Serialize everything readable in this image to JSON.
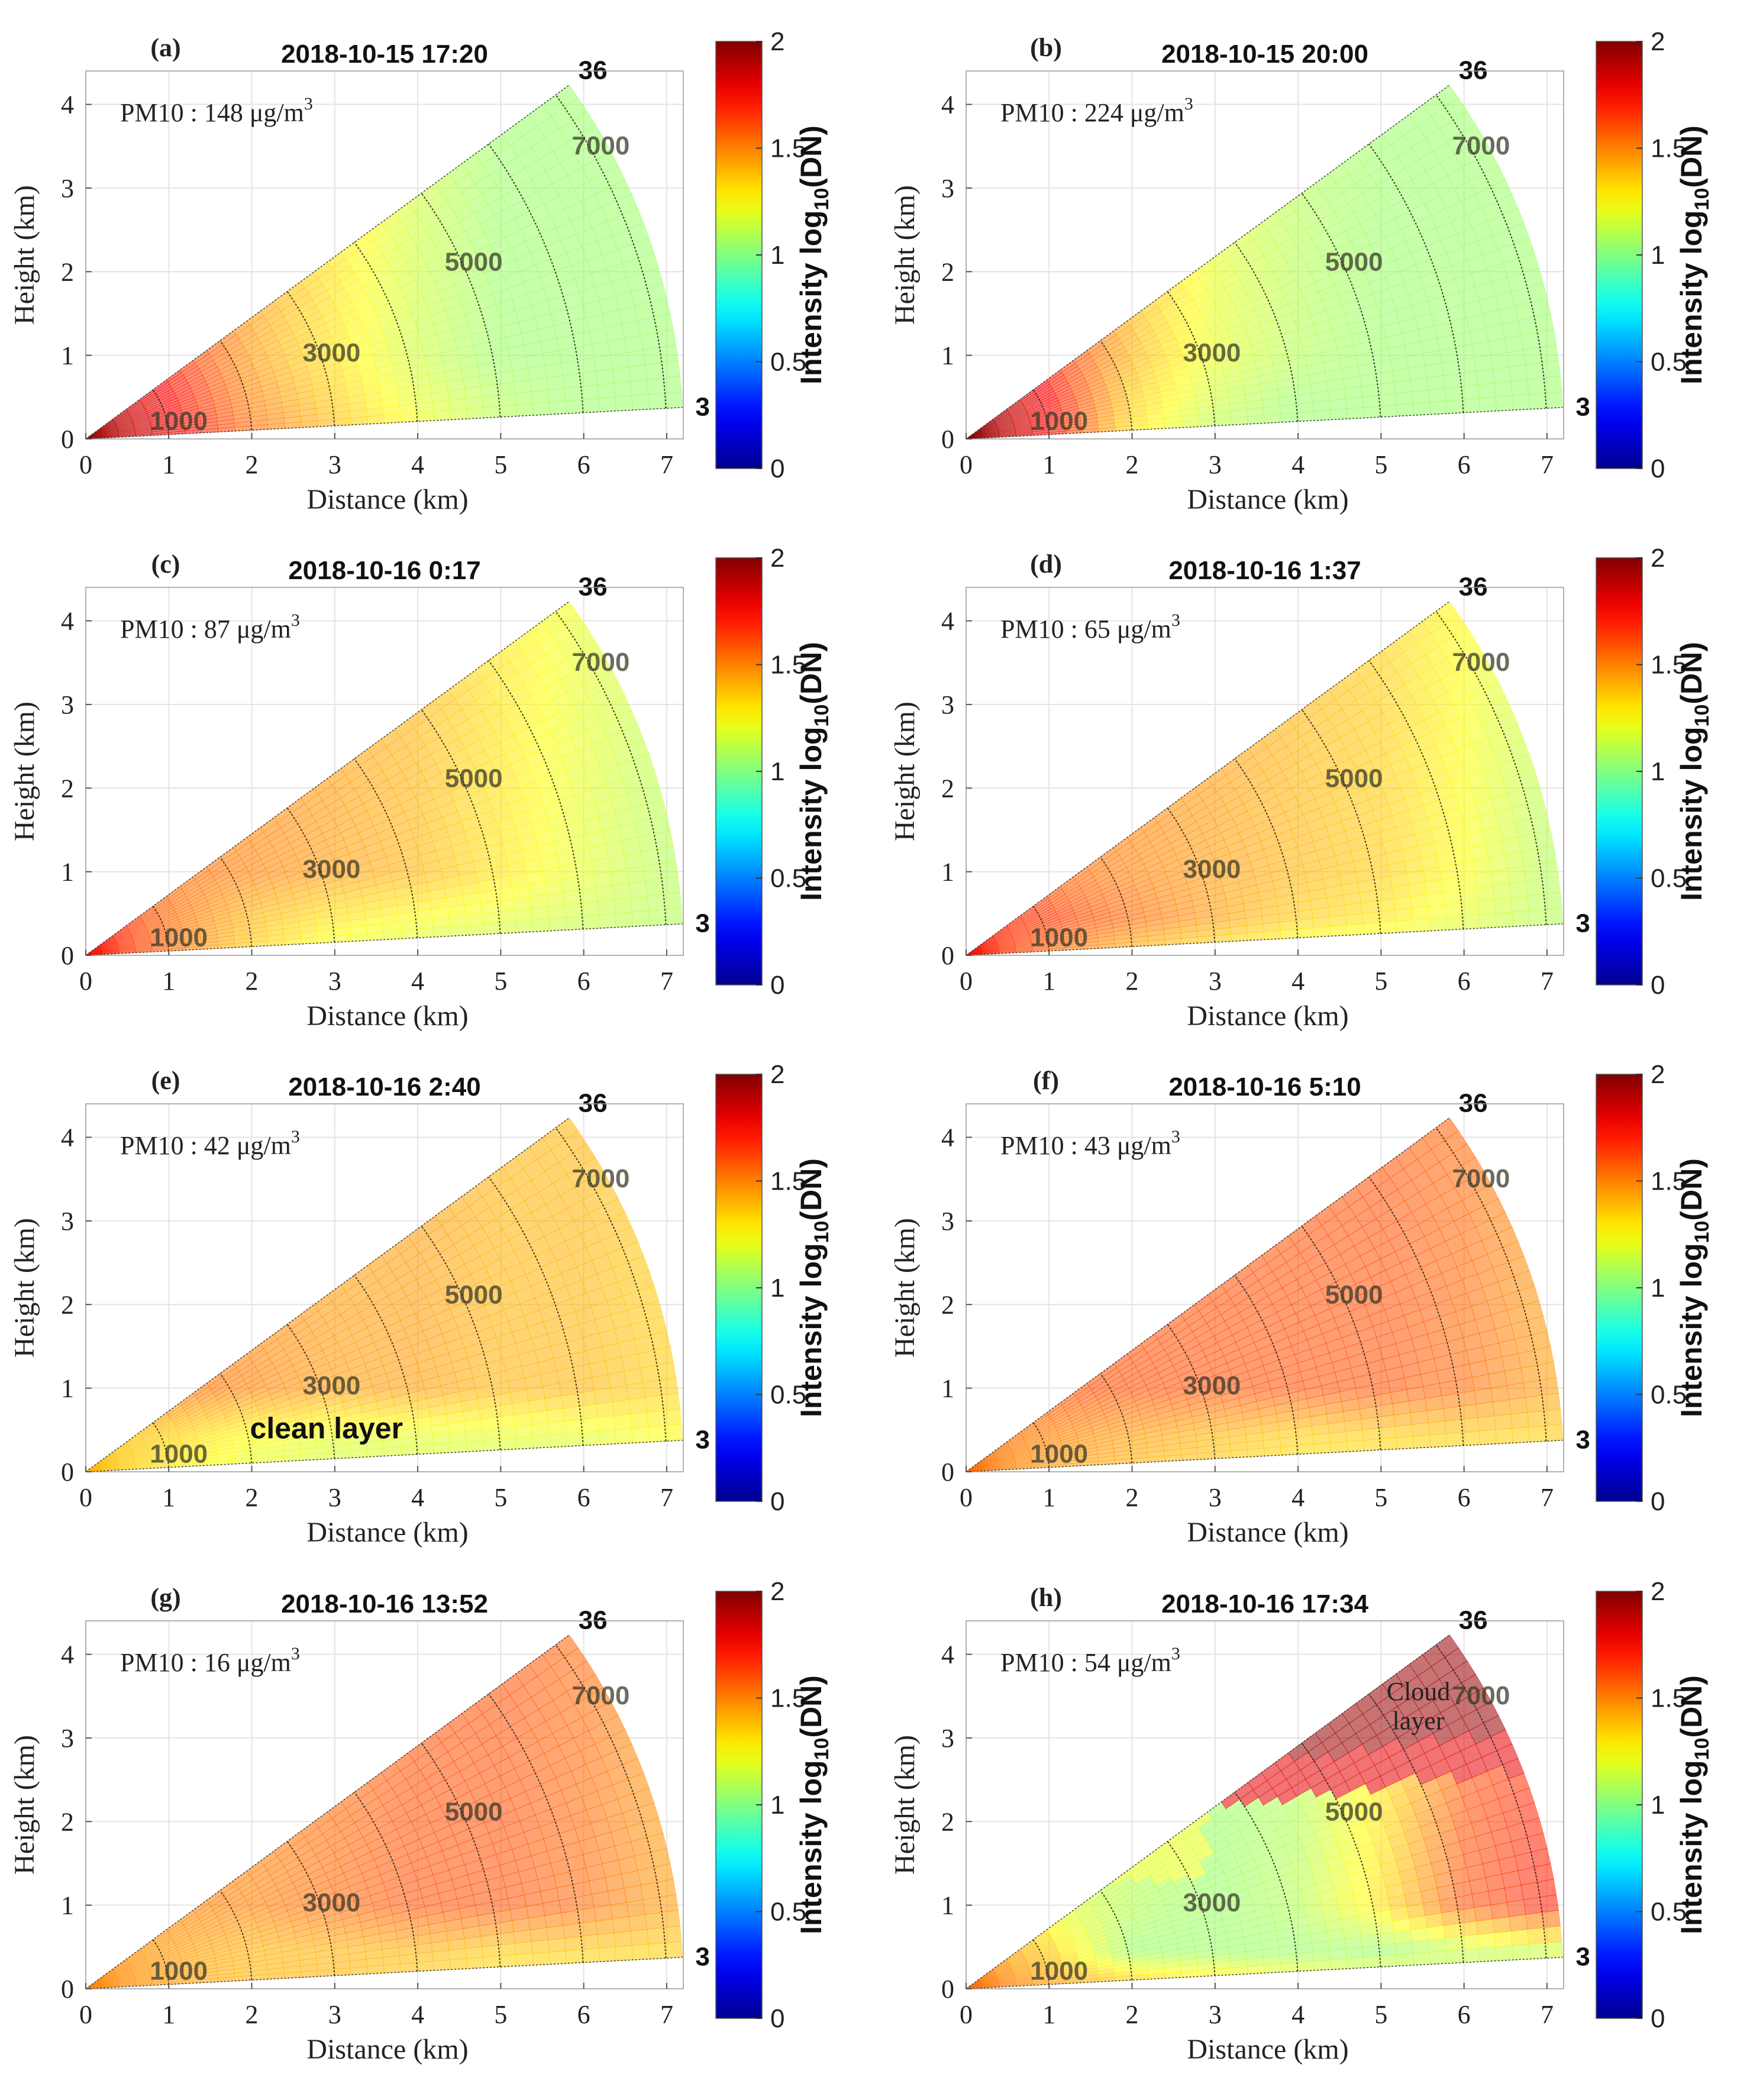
{
  "figure": {
    "xlabel": "Distance (km)",
    "ylabel": "Height (km)",
    "colorbar_label_main": "Intensity log",
    "colorbar_label_sub": "10",
    "colorbar_label_tail": "(DN)",
    "colorbar_ticks": [
      "0",
      "0.5",
      "1",
      "1.5",
      "2"
    ],
    "x_ticks": [
      "0",
      "1",
      "2",
      "3",
      "4",
      "5",
      "6",
      "7"
    ],
    "y_ticks": [
      "0",
      "1",
      "2",
      "3",
      "4"
    ],
    "range_labels": [
      "1000",
      "3000",
      "5000",
      "7000"
    ],
    "angle_top_label": "36",
    "angle_bottom_label": "3",
    "pm_prefix": "PM10 : ",
    "pm_unit": " μg/m",
    "pm_unit_exp": "3",
    "colormap": [
      "#00008f",
      "#0000ff",
      "#00ffff",
      "#ffff00",
      "#ff0000",
      "#800000"
    ]
  },
  "chart_data": [
    {
      "type": "heatmap",
      "panel": "(a)",
      "title": "2018-10-15   17:20",
      "pm10": "148",
      "xlim": [
        0,
        7.2
      ],
      "ylim": [
        0,
        4.4
      ],
      "clim": [
        0,
        2
      ],
      "annotations": [],
      "profiles": [
        {
          "h": 0.05,
          "values": [
            1.95,
            1.8,
            1.55,
            1.4,
            1.25,
            1.1,
            1.05,
            1.05
          ]
        },
        {
          "h": 0.45,
          "values": [
            1.95,
            1.75,
            1.5,
            1.35,
            1.2,
            1.1,
            1.05,
            1.05
          ]
        },
        {
          "h": 1.0,
          "values": [
            1.9,
            1.7,
            1.45,
            1.3,
            1.15,
            1.05,
            1.05,
            1.05
          ]
        }
      ]
    },
    {
      "type": "heatmap",
      "panel": "(b)",
      "title": "2018-10-15   20:00",
      "pm10": "224",
      "xlim": [
        0,
        7.2
      ],
      "ylim": [
        0,
        4.4
      ],
      "clim": [
        0,
        2
      ],
      "annotations": [],
      "profiles": [
        {
          "h": 0.05,
          "values": [
            2.0,
            1.75,
            1.3,
            1.1,
            1.05,
            1.05,
            1.05,
            1.05
          ]
        },
        {
          "h": 0.45,
          "values": [
            2.0,
            1.75,
            1.35,
            1.15,
            1.05,
            1.05,
            1.05,
            1.05
          ]
        },
        {
          "h": 1.0,
          "values": [
            1.95,
            1.7,
            1.4,
            1.2,
            1.1,
            1.05,
            1.05,
            1.05
          ]
        }
      ]
    },
    {
      "type": "heatmap",
      "panel": "(c)",
      "title": "2018-10-16   0:17",
      "pm10": "87",
      "xlim": [
        0,
        7.2
      ],
      "ylim": [
        0,
        4.4
      ],
      "clim": [
        0,
        2
      ],
      "annotations": [],
      "profiles": [
        {
          "h": 0.05,
          "values": [
            1.75,
            1.55,
            1.35,
            1.2,
            1.15,
            1.1,
            1.05,
            1.05
          ]
        },
        {
          "h": 0.45,
          "values": [
            1.75,
            1.55,
            1.4,
            1.3,
            1.25,
            1.2,
            1.15,
            1.1
          ]
        },
        {
          "h": 1.0,
          "values": [
            1.6,
            1.55,
            1.5,
            1.45,
            1.4,
            1.3,
            1.2,
            1.1
          ]
        }
      ]
    },
    {
      "type": "heatmap",
      "panel": "(d)",
      "title": "2018-10-16   1:37",
      "pm10": "65",
      "xlim": [
        0,
        7.2
      ],
      "ylim": [
        0,
        4.4
      ],
      "clim": [
        0,
        2
      ],
      "annotations": [],
      "profiles": [
        {
          "h": 0.05,
          "values": [
            1.75,
            1.55,
            1.4,
            1.3,
            1.2,
            1.15,
            1.1,
            1.05
          ]
        },
        {
          "h": 0.45,
          "values": [
            1.7,
            1.65,
            1.55,
            1.45,
            1.35,
            1.3,
            1.2,
            1.1
          ]
        },
        {
          "h": 1.0,
          "values": [
            1.6,
            1.55,
            1.5,
            1.45,
            1.4,
            1.35,
            1.25,
            1.1
          ]
        }
      ]
    },
    {
      "type": "heatmap",
      "panel": "(e)",
      "title": "2018-10-16   2:40",
      "pm10": "42",
      "xlim": [
        0,
        7.2
      ],
      "ylim": [
        0,
        4.4
      ],
      "clim": [
        0,
        2
      ],
      "annotations": [
        {
          "text": "clean layer",
          "x": 2.9,
          "y": 0.5
        }
      ],
      "profiles": [
        {
          "h": 0.05,
          "values": [
            1.4,
            1.3,
            1.2,
            1.15,
            1.15,
            1.15,
            1.15,
            1.2
          ]
        },
        {
          "h": 0.45,
          "values": [
            1.4,
            1.35,
            1.25,
            1.2,
            1.2,
            1.2,
            1.2,
            1.25
          ]
        },
        {
          "h": 1.0,
          "values": [
            1.6,
            1.55,
            1.5,
            1.45,
            1.45,
            1.4,
            1.4,
            1.35
          ]
        }
      ]
    },
    {
      "type": "heatmap",
      "panel": "(f)",
      "title": "2018-10-16   5:10",
      "pm10": "43",
      "xlim": [
        0,
        7.2
      ],
      "ylim": [
        0,
        4.4
      ],
      "clim": [
        0,
        2
      ],
      "annotations": [],
      "profiles": [
        {
          "h": 0.05,
          "values": [
            1.55,
            1.45,
            1.4,
            1.35,
            1.3,
            1.3,
            1.3,
            1.3
          ]
        },
        {
          "h": 0.45,
          "values": [
            1.55,
            1.5,
            1.45,
            1.4,
            1.35,
            1.35,
            1.35,
            1.35
          ]
        },
        {
          "h": 1.0,
          "values": [
            1.6,
            1.6,
            1.6,
            1.6,
            1.6,
            1.6,
            1.55,
            1.45
          ]
        }
      ]
    },
    {
      "type": "heatmap",
      "panel": "(g)",
      "title": "2018-10-16   13:52",
      "pm10": "16",
      "xlim": [
        0,
        7.2
      ],
      "ylim": [
        0,
        4.4
      ],
      "clim": [
        0,
        2
      ],
      "annotations": [],
      "profiles": [
        {
          "h": 0.05,
          "values": [
            1.5,
            1.45,
            1.4,
            1.4,
            1.35,
            1.3,
            1.3,
            1.3
          ]
        },
        {
          "h": 0.45,
          "values": [
            1.5,
            1.45,
            1.4,
            1.4,
            1.4,
            1.35,
            1.35,
            1.35
          ]
        },
        {
          "h": 1.0,
          "values": [
            1.5,
            1.5,
            1.5,
            1.55,
            1.6,
            1.6,
            1.55,
            1.45
          ]
        }
      ]
    },
    {
      "type": "heatmap",
      "panel": "(h)",
      "title": "2018-10-16   17:34",
      "pm10": "54",
      "xlim": [
        0,
        7.2
      ],
      "ylim": [
        0,
        4.4
      ],
      "clim": [
        0,
        2
      ],
      "annotations": [
        {
          "text": "Cloud",
          "x": 5.45,
          "y": 3.55
        },
        {
          "text": "layer",
          "x": 5.45,
          "y": 3.2
        }
      ],
      "profiles": [
        {
          "h": 0.05,
          "values": [
            1.55,
            1.45,
            1.4,
            1.35,
            1.3,
            1.3,
            1.3,
            1.3
          ]
        },
        {
          "h": 0.45,
          "values": [
            1.5,
            1.35,
            1.05,
            1.05,
            1.05,
            1.05,
            1.1,
            1.15
          ]
        },
        {
          "h": 1.0,
          "values": [
            1.45,
            1.2,
            1.1,
            1.05,
            1.1,
            1.3,
            1.6,
            1.7
          ]
        }
      ]
    }
  ]
}
